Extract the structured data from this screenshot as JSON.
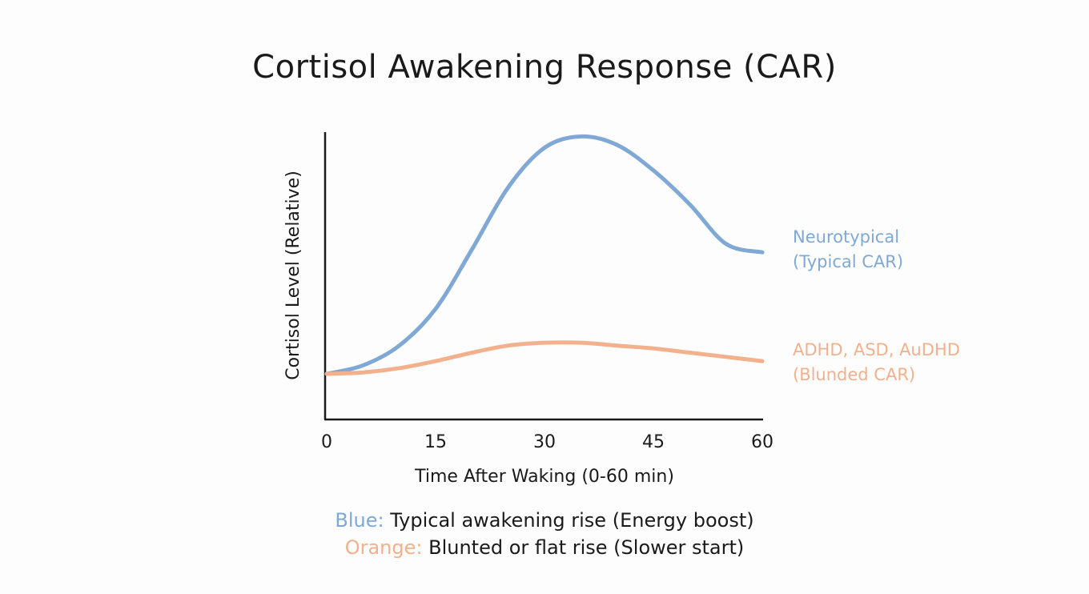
{
  "colors": {
    "blue": "#7fa8d4",
    "orange": "#f2b08c",
    "axis": "#1a1a1a"
  },
  "chart_data": {
    "type": "line",
    "title": "Cortisol Awakening Response (CAR)",
    "xlabel": "Time After Waking (0-60 min)",
    "ylabel": "Cortisol Level (Relative)",
    "xlim": [
      0,
      60
    ],
    "ylim": [
      0,
      100
    ],
    "x_ticks": [
      "0",
      "15",
      "30",
      "45",
      "60"
    ],
    "x_tick_values": [
      0,
      15,
      30,
      45,
      60
    ],
    "grid": false,
    "series": [
      {
        "name": "Neurotypical (Typical CAR)",
        "label_lines": [
          "Neurotypical",
          "(Typical CAR)"
        ],
        "color": "#7fa8d4",
        "x": [
          0,
          5,
          10,
          15,
          20,
          25,
          30,
          35,
          40,
          45,
          50,
          55,
          60
        ],
        "values": [
          16,
          19,
          26,
          39,
          60,
          82,
          96,
          100,
          97,
          88,
          76,
          62,
          59
        ]
      },
      {
        "name": "ADHD, ASD, AuDHD (Blunded CAR)",
        "label_lines": [
          "ADHD, ASD, AuDHD",
          "(Blunded CAR)"
        ],
        "color": "#f2b08c",
        "x": [
          0,
          5,
          10,
          15,
          20,
          25,
          30,
          35,
          40,
          45,
          50,
          55,
          60
        ],
        "values": [
          16,
          16.5,
          18,
          20.5,
          23.5,
          26,
          27,
          27,
          26,
          25,
          23.5,
          22,
          20.5
        ]
      }
    ]
  },
  "caption": {
    "blue_key": "Blue:",
    "blue_text": "Typical awakening rise (Energy boost)",
    "orange_key": "Orange:",
    "orange_text": "Blunted or flat rise (Slower start)"
  }
}
